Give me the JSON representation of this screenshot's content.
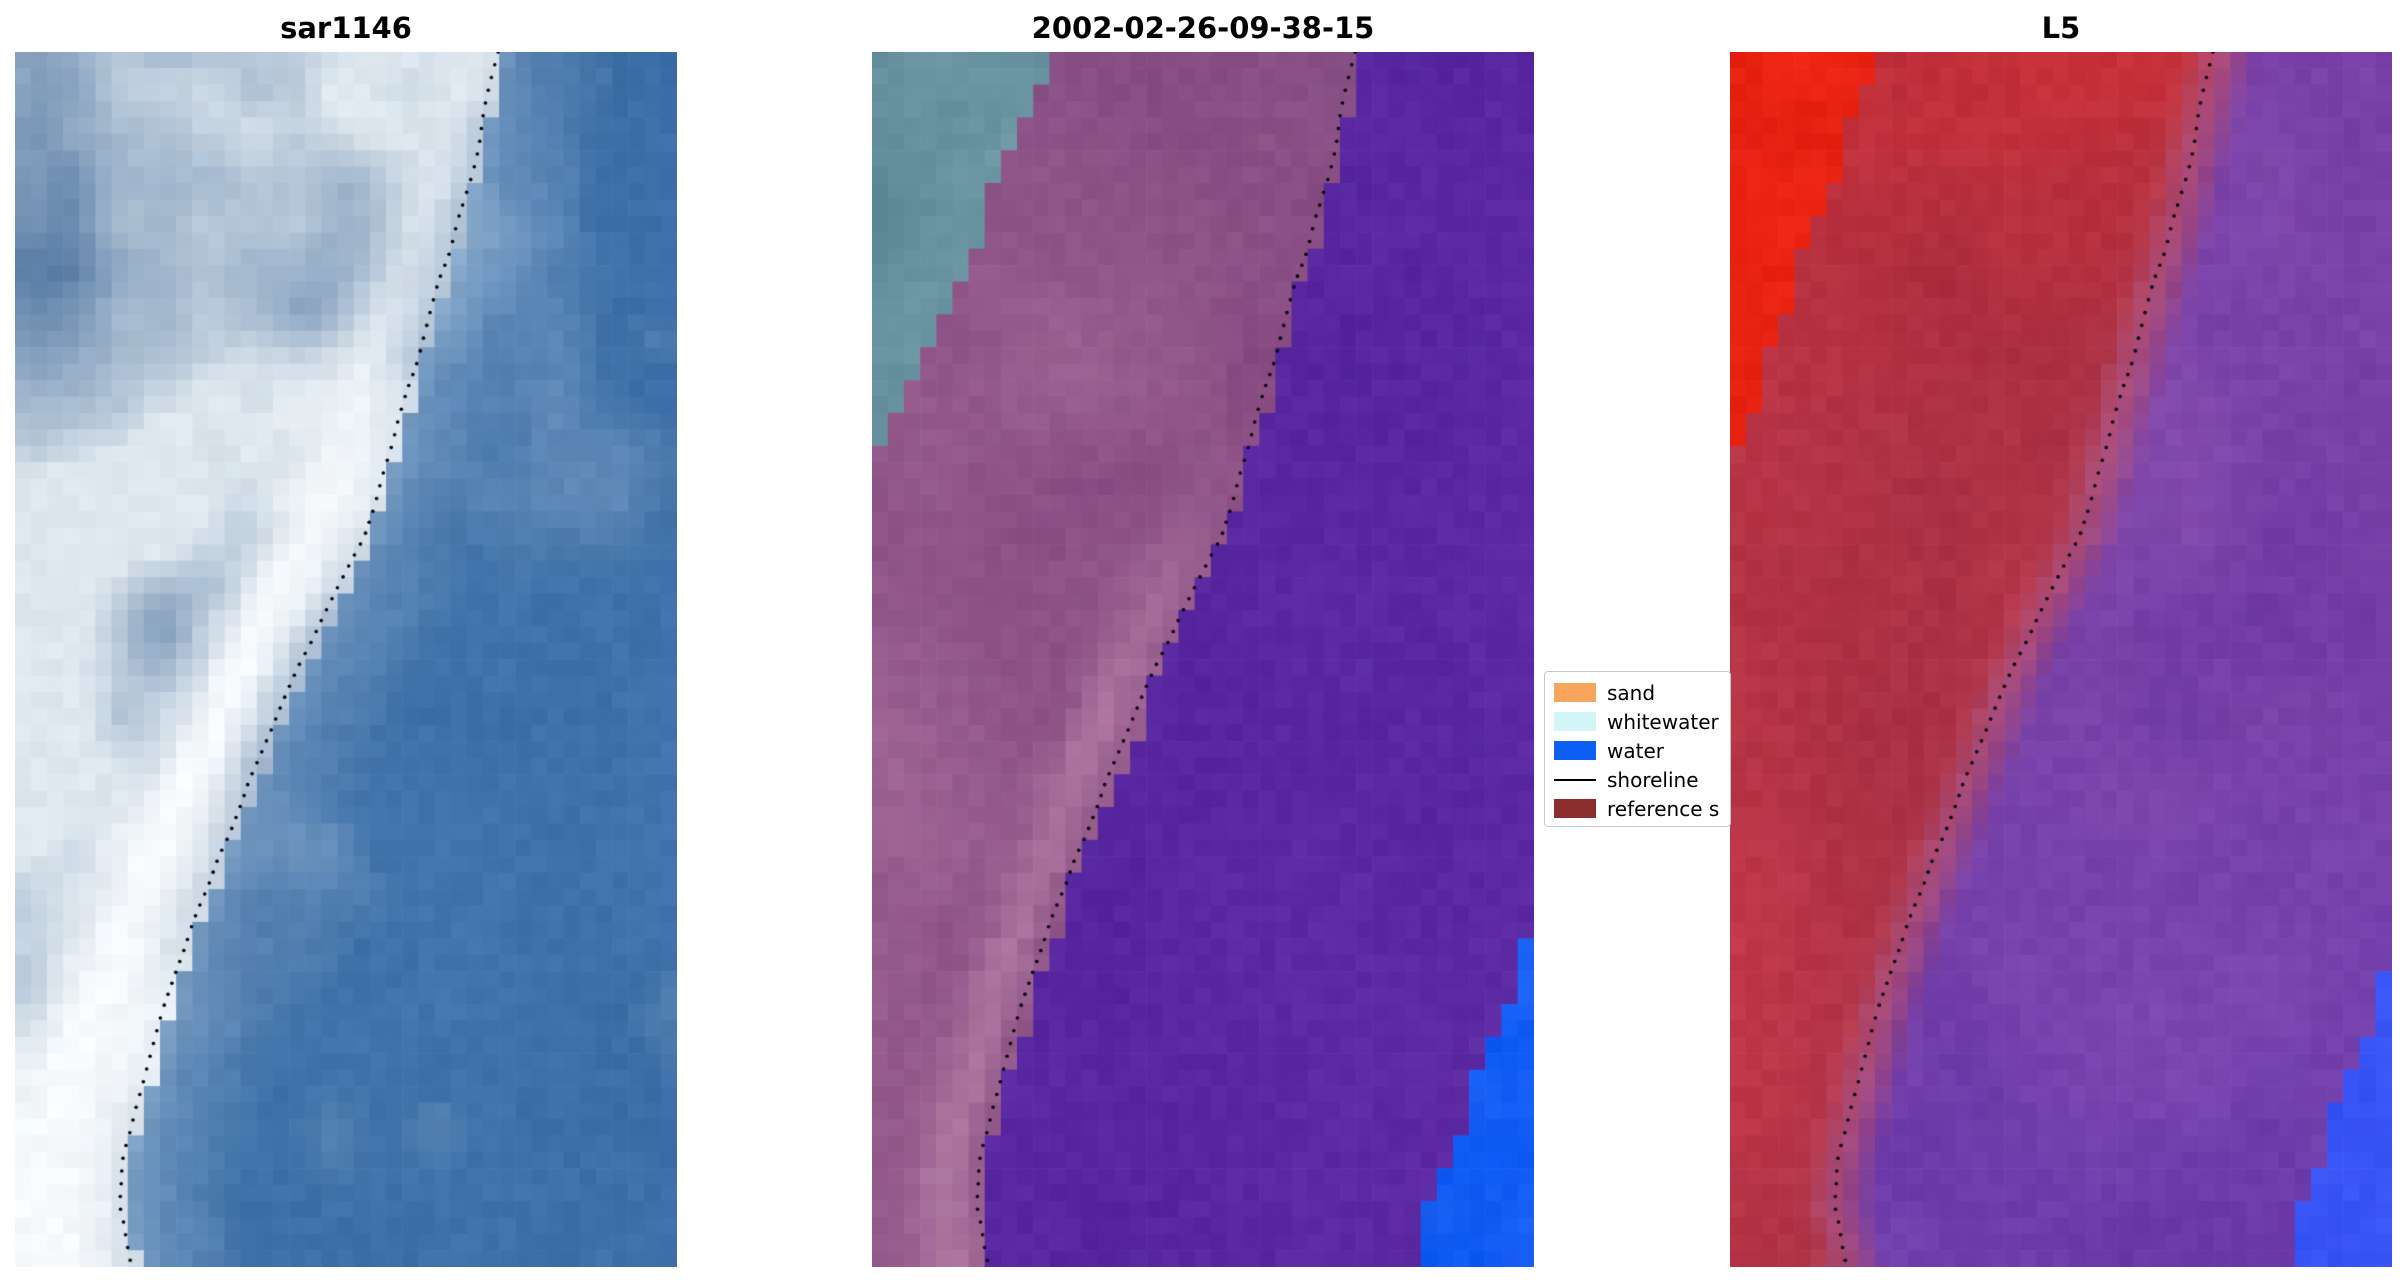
{
  "figure": {
    "background": "#ffffff"
  },
  "panels": [
    {
      "title": "sar1146"
    },
    {
      "title": "2002-02-26-09-38-15"
    },
    {
      "title": "L5"
    }
  ],
  "legend": {
    "entries": [
      {
        "label": "sand",
        "type": "patch",
        "color": "#f7a45c"
      },
      {
        "label": "whitewater",
        "type": "patch",
        "color": "#d2f6f8"
      },
      {
        "label": "water",
        "type": "patch",
        "color": "#0d5ef2"
      },
      {
        "label": "shoreline",
        "type": "line",
        "color": "#000000"
      },
      {
        "label": "reference s",
        "type": "patch",
        "color": "#8c2e2e"
      }
    ]
  },
  "chart_data": {
    "type": "image_panels",
    "titles": [
      "sar1146",
      "2002-02-26-09-38-15",
      "L5"
    ],
    "legend_entries": [
      "sand",
      "whitewater",
      "water",
      "shoreline",
      "reference s"
    ],
    "shoreline_path_norm": [
      [
        0.733,
        0.0
      ],
      [
        0.7,
        0.07
      ],
      [
        0.666,
        0.147
      ],
      [
        0.63,
        0.21
      ],
      [
        0.596,
        0.273
      ],
      [
        0.56,
        0.34
      ],
      [
        0.527,
        0.4
      ],
      [
        0.47,
        0.46
      ],
      [
        0.411,
        0.526
      ],
      [
        0.365,
        0.59
      ],
      [
        0.318,
        0.652
      ],
      [
        0.27,
        0.72
      ],
      [
        0.232,
        0.779
      ],
      [
        0.2,
        0.84
      ],
      [
        0.167,
        0.905
      ],
      [
        0.155,
        0.95
      ],
      [
        0.175,
        1.0
      ]
    ]
  },
  "palette": {
    "sar": {
      "water_base": "#4478af",
      "water_dark": "#2f5f99",
      "water_light": "#7ca2c7",
      "cloud": "#dfe8ef",
      "land_dark": "#5d80a8",
      "band_white": "#f8fbfd"
    },
    "classified": {
      "whitewater_dark": "#54808f",
      "whitewater_light": "#79a2ad",
      "sand_dark": "#7e4079",
      "sand_light": "#a86f9c",
      "sand_bright": "#bd8bae",
      "sand_deep": "#6d3a74",
      "water_overlay": "#55249c",
      "water_overlay_light": "#6531ac",
      "water_class": "#0a57f3",
      "water_class_light": "#2f6ef6"
    },
    "l5": {
      "red_bright": "#ee2413",
      "red_deep": "#d01c0e",
      "red_base": "#c23a4c",
      "red_dark": "#9c2a3e",
      "red_left": "#d8404d",
      "pink_edge": "#c96f8e",
      "purple_dark": "#6a34a0",
      "purple_light": "#8b51b2",
      "purple_blue": "#5c38b4",
      "blue": "#2946ee",
      "blue_light": "#4a66ff"
    }
  }
}
